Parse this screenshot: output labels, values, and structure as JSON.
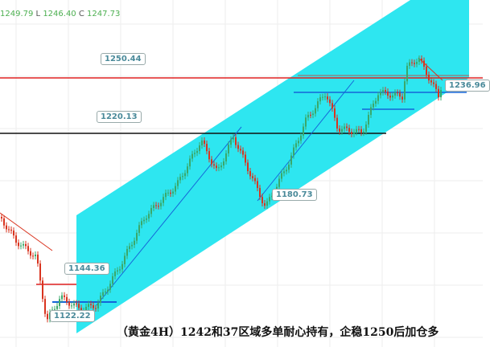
{
  "ohlc": {
    "h_value": "1249.79",
    "l_key": "L",
    "l_value": "1246.40",
    "c_key": "C",
    "c_value": "1247.73"
  },
  "labels": {
    "l1250": "1250.44",
    "l1220": "1220.13",
    "l1180": "1180.73",
    "l1144": "1144.36",
    "l1122": "1122.22",
    "l1236": "1236.96"
  },
  "caption": "（黄金4H）1242和37区域多单耐心持有，企稳1250后加仓多",
  "colors": {
    "channel": "#2ee6f0",
    "up": "#3aa86a",
    "down": "#d9341f",
    "resistance": "#e02020",
    "support": "#111111",
    "blue_line": "#1565d8"
  }
}
